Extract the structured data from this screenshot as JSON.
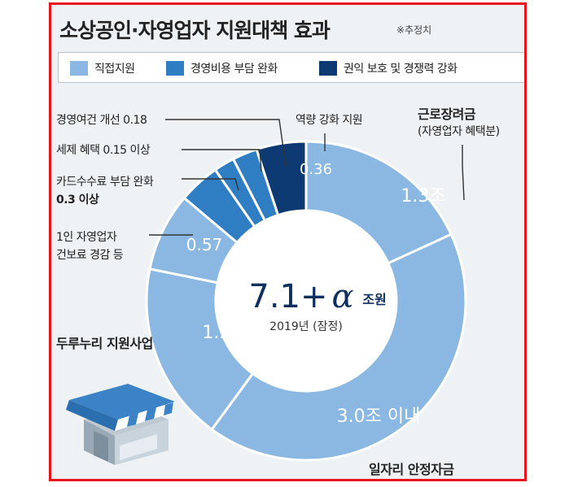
{
  "title": "소상공인·자영업자 지원대책 효과",
  "note": "※추정치",
  "legend": [
    {
      "label": "직접지원",
      "color": "#8ab8e2"
    },
    {
      "label": "경영비용 부담 완화",
      "color": "#2f7ec4"
    },
    {
      "label": "권익 보호 및 경쟁력 강화",
      "color": "#0d3a72"
    }
  ],
  "chart_data": {
    "type": "pie",
    "variant": "donut",
    "center_main": "7.1+",
    "center_alpha": "α",
    "center_unit": "조원",
    "center_sub": "2019년 (잠정)",
    "slices": [
      {
        "name_lines": [
          "근로장려금",
          "(자영업자 혜택분)"
        ],
        "value": 1.3,
        "value_label": "1.3조",
        "category": "직접지원",
        "bold_name": true
      },
      {
        "name_lines": [
          "일자리 안정자금"
        ],
        "value": 3.0,
        "value_label": "3.0조 이내",
        "category": "직접지원",
        "bold_name": true
      },
      {
        "name_lines": [
          "두루누리 지원사업"
        ],
        "value": 1.3,
        "value_label": "1.3조",
        "category": "직접지원",
        "bold_name": true
      },
      {
        "name_lines": [
          "1인 자영업자",
          "건보료 경감 등"
        ],
        "value": 0.57,
        "value_label": "0.57",
        "category": "직접지원"
      },
      {
        "name_lines": [
          "카드수수료 부담 완화",
          "0.3 이상"
        ],
        "value": 0.3,
        "value_label": "",
        "category": "경영비용 부담 완화"
      },
      {
        "name_lines": [
          "세제 혜택 0.15 이상"
        ],
        "value": 0.15,
        "value_label": "",
        "category": "경영비용 부담 완화"
      },
      {
        "name_lines": [
          "경영여건 개선 0.18"
        ],
        "value": 0.18,
        "value_label": "",
        "category": "경영비용 부담 완화"
      },
      {
        "name_lines": [
          "역량 강화 지원"
        ],
        "value": 0.36,
        "value_label": "0.36",
        "category": "권익 보호 및 경쟁력 강화"
      }
    ]
  }
}
